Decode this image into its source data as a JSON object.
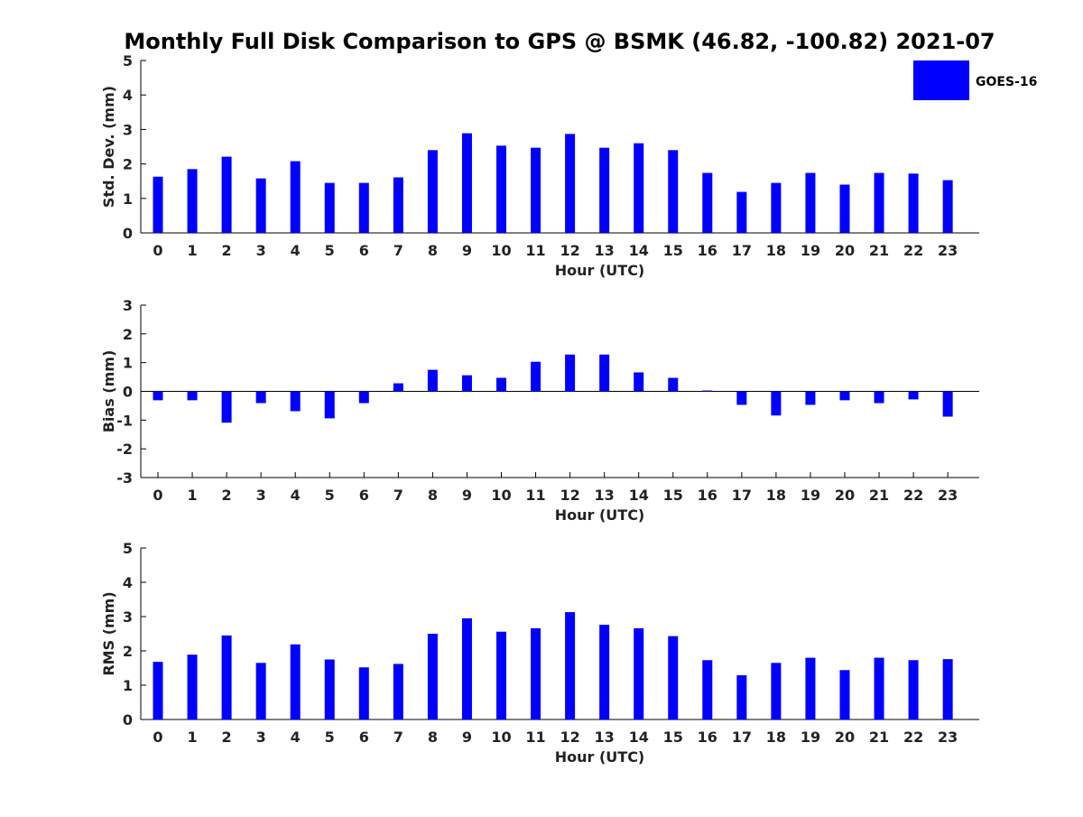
{
  "title": "Monthly Full Disk Comparison to GPS @ BSMK (46.82, -100.82) 2021-07",
  "colors": {
    "bar": "#0000ff",
    "axis": "#000000",
    "text": "#222222"
  },
  "legend": {
    "label": "GOES-16",
    "placement": "top-right"
  },
  "chart_data": [
    {
      "type": "bar",
      "xlabel": "Hour (UTC)",
      "ylabel": "Std. Dev. (mm)",
      "ylim": [
        0,
        5
      ],
      "yticks": [
        0,
        1,
        2,
        3,
        4,
        5
      ],
      "categories": [
        "0",
        "1",
        "2",
        "3",
        "4",
        "5",
        "6",
        "7",
        "8",
        "9",
        "10",
        "11",
        "12",
        "13",
        "14",
        "15",
        "16",
        "17",
        "18",
        "19",
        "20",
        "21",
        "22",
        "23"
      ],
      "series": [
        {
          "name": "GOES-16",
          "values": [
            1.63,
            1.85,
            2.21,
            1.58,
            2.08,
            1.45,
            1.45,
            1.61,
            2.4,
            2.89,
            2.53,
            2.47,
            2.87,
            2.47,
            2.6,
            2.4,
            1.74,
            1.19,
            1.45,
            1.74,
            1.4,
            1.74,
            1.72,
            1.53
          ]
        }
      ],
      "grid": false
    },
    {
      "type": "bar",
      "xlabel": "Hour (UTC)",
      "ylabel": "Bias (mm)",
      "ylim": [
        -3,
        3
      ],
      "yticks": [
        -3,
        -2,
        -1,
        0,
        1,
        2,
        3
      ],
      "categories": [
        "0",
        "1",
        "2",
        "3",
        "4",
        "5",
        "6",
        "7",
        "8",
        "9",
        "10",
        "11",
        "12",
        "13",
        "14",
        "15",
        "16",
        "17",
        "18",
        "19",
        "20",
        "21",
        "22",
        "23"
      ],
      "series": [
        {
          "name": "GOES-16",
          "values": [
            -0.31,
            -0.31,
            -1.09,
            -0.41,
            -0.69,
            -0.94,
            -0.41,
            0.28,
            0.75,
            0.56,
            0.47,
            1.03,
            1.28,
            1.28,
            0.66,
            0.47,
            0.03,
            -0.47,
            -0.84,
            -0.47,
            -0.31,
            -0.41,
            -0.28,
            -0.88
          ]
        }
      ],
      "grid": false
    },
    {
      "type": "bar",
      "xlabel": "Hour (UTC)",
      "ylabel": "RMS (mm)",
      "ylim": [
        0,
        5
      ],
      "yticks": [
        0,
        1,
        2,
        3,
        4,
        5
      ],
      "categories": [
        "0",
        "1",
        "2",
        "3",
        "4",
        "5",
        "6",
        "7",
        "8",
        "9",
        "10",
        "11",
        "12",
        "13",
        "14",
        "15",
        "16",
        "17",
        "18",
        "19",
        "20",
        "21",
        "22",
        "23"
      ],
      "series": [
        {
          "name": "GOES-16",
          "values": [
            1.68,
            1.89,
            2.45,
            1.65,
            2.19,
            1.75,
            1.52,
            1.62,
            2.5,
            2.95,
            2.56,
            2.66,
            3.13,
            2.76,
            2.66,
            2.43,
            1.73,
            1.29,
            1.65,
            1.8,
            1.44,
            1.8,
            1.73,
            1.76
          ]
        }
      ],
      "grid": false
    }
  ]
}
